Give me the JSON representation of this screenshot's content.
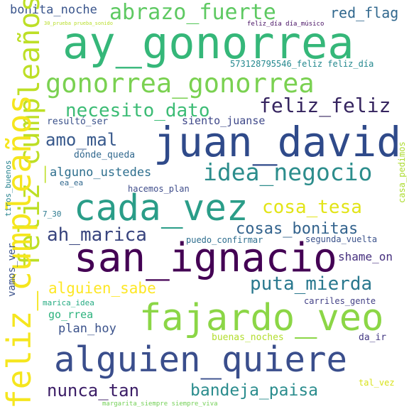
{
  "wordcloud": {
    "words": [
      {
        "text": "ay_gonorrea",
        "color": "#35b779",
        "rotated": false
      },
      {
        "text": "san_ignacio",
        "color": "#440154",
        "rotated": false
      },
      {
        "text": "juan_david",
        "color": "#2f4a8a",
        "rotated": false
      },
      {
        "text": "alguien_quiere",
        "color": "#3a4e8c",
        "rotated": false
      },
      {
        "text": "cada_vez",
        "color": "#2a9d88",
        "rotated": false
      },
      {
        "text": "fajardo_veo",
        "color": "#8bd646",
        "rotated": false
      },
      {
        "text": "feliz_cumpleaños",
        "color": "#bddf26",
        "rotated": true
      },
      {
        "text": "feliz_cumpleaños",
        "color": "#f5e61e",
        "rotated": true
      },
      {
        "text": "gonorrea_gonorrea",
        "color": "#7ad151",
        "rotated": false
      },
      {
        "text": "abrazo_fuerte",
        "color": "#5ec962",
        "rotated": false
      },
      {
        "text": "idea_negocio",
        "color": "#2c8d8c",
        "rotated": false
      },
      {
        "text": "feliz_feliz",
        "color": "#35245f",
        "rotated": false
      },
      {
        "text": "necesito_dato",
        "color": "#3cbc75",
        "rotated": false
      },
      {
        "text": "puta_mierda",
        "color": "#29788e",
        "rotated": false
      },
      {
        "text": "cosa_tesa",
        "color": "#e2e418",
        "rotated": false
      },
      {
        "text": "bandeja_paisa",
        "color": "#2a8c8d",
        "rotated": false
      },
      {
        "text": "nunca_tan",
        "color": "#3b1d66",
        "rotated": false
      },
      {
        "text": "amo_mal",
        "color": "#38598c",
        "rotated": false
      },
      {
        "text": "ah_marica",
        "color": "#38447e",
        "rotated": false
      },
      {
        "text": "cosas_bonitas",
        "color": "#33638d",
        "rotated": false
      },
      {
        "text": "alguien_sabe",
        "color": "#fde725",
        "rotated": false
      },
      {
        "text": "red_flag",
        "color": "#31688e",
        "rotated": false
      },
      {
        "text": "bonita_noche",
        "color": "#3a558c",
        "rotated": false
      },
      {
        "text": "alguno_ustedes",
        "color": "#2e6f8e",
        "rotated": false
      },
      {
        "text": "siento_juanse",
        "color": "#3f4889",
        "rotated": false
      },
      {
        "text": "plan_hoy",
        "color": "#3b528b",
        "rotated": false
      },
      {
        "text": "shame_on",
        "color": "#46307e",
        "rotated": false
      },
      {
        "text": "go_rrea",
        "color": "#2db27d",
        "rotated": false
      },
      {
        "text": "resultó_ser",
        "color": "#3b528b",
        "rotated": false
      },
      {
        "text": "dónde_queda",
        "color": "#31688e",
        "rotated": false
      },
      {
        "text": "573128795546_feliz feliz_día",
        "color": "#23888e",
        "rotated": false
      },
      {
        "text": "feliz_día día_músico",
        "color": "#471063",
        "rotated": false
      },
      {
        "text": "30_prueba prueba_sonido",
        "color": "#b8de29",
        "rotated": false
      },
      {
        "text": "vamos_ver",
        "color": "#3b528b",
        "rotated": true
      },
      {
        "text": "tiros_buenos",
        "color": "#26828e",
        "rotated": true
      },
      {
        "text": "casa_pedimos",
        "color": "#addc30",
        "rotated": true
      },
      {
        "text": "7_30",
        "color": "#2a788e",
        "rotated": false
      },
      {
        "text": "ea_ea",
        "color": "#31688e",
        "rotated": false
      },
      {
        "text": "hacemos_plan",
        "color": "#3e4c8a",
        "rotated": false
      },
      {
        "text": "puedo_confirmar",
        "color": "#2e6e8e",
        "rotated": false
      },
      {
        "text": "segunda_vuelta",
        "color": "#3b528b",
        "rotated": false
      },
      {
        "text": "marica_idea",
        "color": "#25ab82",
        "rotated": false
      },
      {
        "text": "carriles_gente",
        "color": "#424086",
        "rotated": false
      },
      {
        "text": "buenas_noches",
        "color": "#b2dd2d",
        "rotated": false
      },
      {
        "text": "da_ir",
        "color": "#443983",
        "rotated": false
      },
      {
        "text": "tal_vez",
        "color": "#d8e219",
        "rotated": false
      },
      {
        "text": "margarita_siempre siempre_viva",
        "color": "#73d056",
        "rotated": false
      }
    ]
  }
}
